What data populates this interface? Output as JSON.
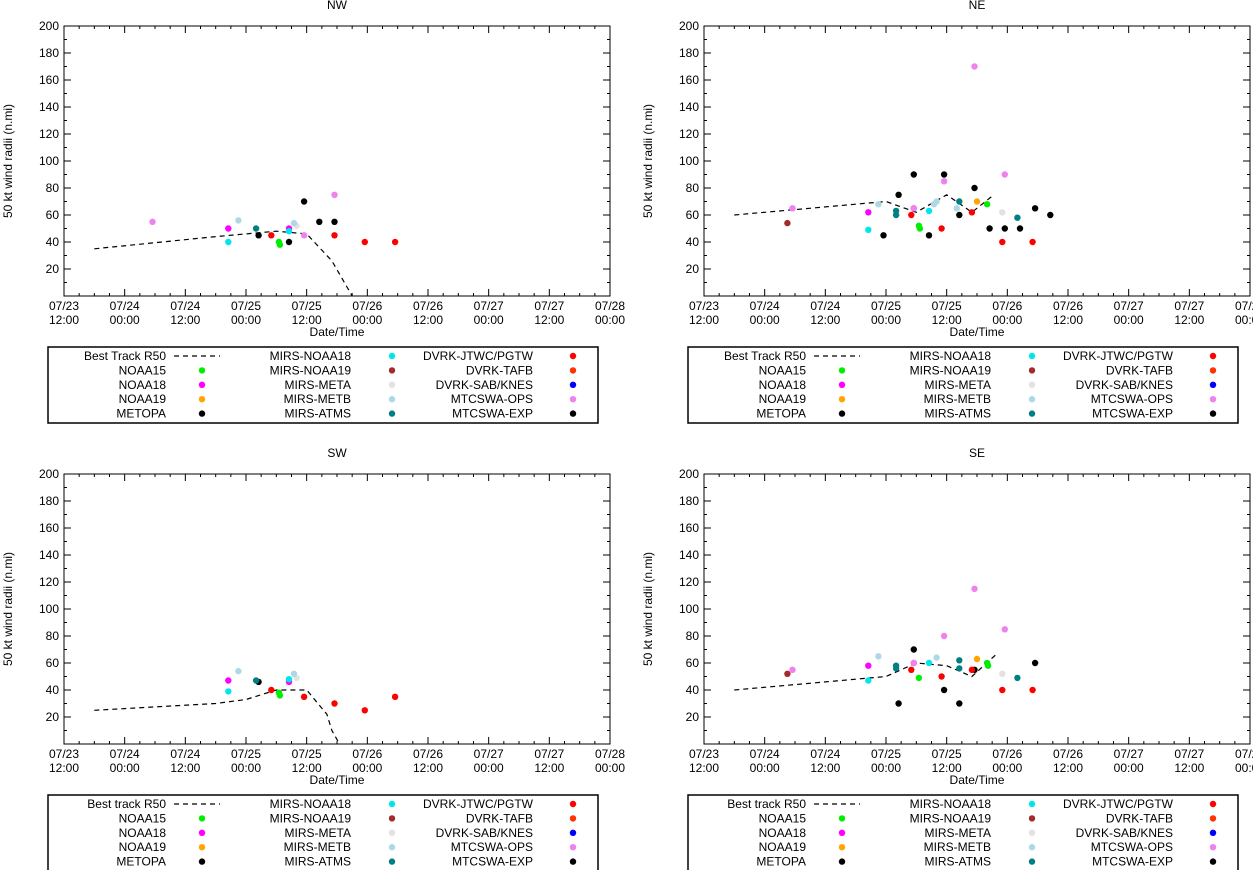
{
  "y_axis_label": "50 kt wind radii (n.mi)",
  "x_axis_label": "Date/Time",
  "x_tick_labels": [
    [
      "07/23",
      "12:00"
    ],
    [
      "07/24",
      "00:00"
    ],
    [
      "07/24",
      "12:00"
    ],
    [
      "07/25",
      "00:00"
    ],
    [
      "07/25",
      "12:00"
    ],
    [
      "07/26",
      "00:00"
    ],
    [
      "07/26",
      "12:00"
    ],
    [
      "07/27",
      "00:00"
    ],
    [
      "07/27",
      "12:00"
    ],
    [
      "07/28",
      "00:00"
    ]
  ],
  "colors": {
    "NOAA15": "#00ee00",
    "NOAA18": "#ff00ff",
    "NOAA19": "#ffa500",
    "METOPA": "#000000",
    "MIRS-NOAA18": "#00e5ee",
    "MIRS-NOAA19": "#a52a2a",
    "MIRS-META": "#e6e0e0",
    "MIRS-METB": "#add8e6",
    "MIRS-ATMS": "#008080",
    "DVRK-JTWC/PGTW": "#ff0000",
    "DVRK-TAFB": "#ff3300",
    "DVRK-SAB/KNES": "#0000ff",
    "MTCSWA-OPS": "#ee82ee",
    "MTCSWA-EXP": "#000000"
  },
  "chart_data": [
    {
      "type": "scatter",
      "title": "NW",
      "xlabel": "Date/Time",
      "ylabel": "50 kt wind radii (n.mi)",
      "x_unit": "hours since 07/23 12:00",
      "xlim": [
        0,
        108
      ],
      "ylim": [
        0,
        200
      ],
      "yticks": [
        20,
        40,
        60,
        80,
        100,
        120,
        140,
        160,
        180,
        200
      ],
      "legend": [
        "Best Track R50",
        "NOAA15",
        "NOAA18",
        "NOAA19",
        "METOPA",
        "MIRS-NOAA18",
        "MIRS-NOAA19",
        "MIRS-META",
        "MIRS-METB",
        "MIRS-ATMS",
        "DVRK-JTWC/PGTW",
        "DVRK-TAFB",
        "DVRK-SAB/KNES",
        "MTCSWA-OPS",
        "MTCSWA-EXP"
      ],
      "best_track": [
        [
          6,
          35
        ],
        [
          30,
          44
        ],
        [
          42,
          48
        ],
        [
          48,
          46
        ],
        [
          53,
          26
        ],
        [
          57,
          0
        ]
      ],
      "series": [
        {
          "name": "NOAA15",
          "points": [
            [
              42.5,
              40
            ],
            [
              42.7,
              38
            ]
          ]
        },
        {
          "name": "NOAA18",
          "points": [
            [
              32.5,
              50
            ],
            [
              44.5,
              50
            ]
          ]
        },
        {
          "name": "METOPA",
          "points": [
            [
              38.5,
              45
            ],
            [
              44.5,
              40
            ],
            [
              47.5,
              70
            ],
            [
              50.5,
              55
            ],
            [
              53.5,
              55
            ]
          ]
        },
        {
          "name": "MIRS-NOAA18",
          "points": [
            [
              32.5,
              40
            ],
            [
              44.5,
              48
            ]
          ]
        },
        {
          "name": "MIRS-META",
          "points": [
            [
              46,
              52
            ]
          ]
        },
        {
          "name": "MIRS-METB",
          "points": [
            [
              34.5,
              56
            ],
            [
              45.5,
              54
            ]
          ]
        },
        {
          "name": "MIRS-ATMS",
          "points": [
            [
              38,
              50
            ]
          ]
        },
        {
          "name": "DVRK-JTWC/PGTW",
          "points": [
            [
              41,
              45
            ],
            [
              53.5,
              45
            ],
            [
              59.5,
              40
            ],
            [
              65.5,
              40
            ]
          ]
        },
        {
          "name": "MTCSWA-OPS",
          "points": [
            [
              17.5,
              55
            ],
            [
              47.5,
              45
            ],
            [
              53.5,
              75
            ]
          ]
        }
      ]
    },
    {
      "type": "scatter",
      "title": "NE",
      "xlabel": "Date/Time",
      "ylabel": "50 kt wind radii (n.mi)",
      "x_unit": "hours since 07/23 12:00",
      "xlim": [
        0,
        108
      ],
      "ylim": [
        0,
        200
      ],
      "yticks": [
        20,
        40,
        60,
        80,
        100,
        120,
        140,
        160,
        180,
        200
      ],
      "legend": [
        "Best Track R50",
        "NOAA15",
        "NOAA18",
        "NOAA19",
        "METOPA",
        "MIRS-NOAA18",
        "MIRS-NOAA19",
        "MIRS-META",
        "MIRS-METB",
        "MIRS-ATMS",
        "DVRK-JTWC/PGTW",
        "DVRK-TAFB",
        "DVRK-SAB/KNES",
        "MTCSWA-OPS",
        "MTCSWA-EXP"
      ],
      "best_track": [
        [
          6,
          60
        ],
        [
          36,
          70
        ],
        [
          42,
          62
        ],
        [
          48,
          75
        ],
        [
          53,
          62
        ],
        [
          57,
          74
        ]
      ],
      "series": [
        {
          "name": "NOAA15",
          "points": [
            [
              42.5,
              52
            ],
            [
              42.7,
              50
            ],
            [
              56,
              68
            ]
          ]
        },
        {
          "name": "NOAA18",
          "points": [
            [
              32.5,
              62
            ],
            [
              41.5,
              65
            ]
          ]
        },
        {
          "name": "NOAA19",
          "points": [
            [
              54,
              70
            ]
          ]
        },
        {
          "name": "METOPA",
          "points": [
            [
              38.5,
              75
            ],
            [
              41.5,
              90
            ],
            [
              44.5,
              45
            ],
            [
              47.5,
              90
            ],
            [
              50.5,
              60
            ],
            [
              53.5,
              80
            ],
            [
              56.5,
              50
            ],
            [
              59.5,
              50
            ],
            [
              62.5,
              50
            ],
            [
              65.5,
              65
            ],
            [
              68.5,
              60
            ],
            [
              35.5,
              45
            ]
          ]
        },
        {
          "name": "MIRS-NOAA18",
          "points": [
            [
              32.5,
              49
            ],
            [
              44.5,
              63
            ]
          ]
        },
        {
          "name": "MIRS-NOAA19",
          "points": [
            [
              16.5,
              54
            ]
          ]
        },
        {
          "name": "MIRS-META",
          "points": [
            [
              59,
              62
            ]
          ]
        },
        {
          "name": "MIRS-METB",
          "points": [
            [
              34.5,
              68
            ],
            [
              45.5,
              68
            ],
            [
              46,
              70
            ],
            [
              50,
              65
            ]
          ]
        },
        {
          "name": "MIRS-ATMS",
          "points": [
            [
              38,
              60
            ],
            [
              38,
              63
            ],
            [
              50.5,
              70
            ],
            [
              62,
              58
            ]
          ]
        },
        {
          "name": "DVRK-JTWC/PGTW",
          "points": [
            [
              41,
              60
            ],
            [
              47,
              50
            ],
            [
              53,
              62
            ],
            [
              59,
              40
            ],
            [
              65,
              40
            ]
          ]
        },
        {
          "name": "MTCSWA-OPS",
          "points": [
            [
              17.5,
              65
            ],
            [
              41.5,
              65
            ],
            [
              47.5,
              85
            ],
            [
              53.5,
              170
            ],
            [
              59.5,
              90
            ]
          ]
        }
      ]
    },
    {
      "type": "scatter",
      "title": "SW",
      "xlabel": "Date/Time",
      "ylabel": "50 kt wind radii (n.mi)",
      "x_unit": "hours since 07/23 12:00",
      "xlim": [
        0,
        108
      ],
      "ylim": [
        0,
        200
      ],
      "yticks": [
        20,
        40,
        60,
        80,
        100,
        120,
        140,
        160,
        180,
        200
      ],
      "legend": [
        "Best track R50",
        "NOAA15",
        "NOAA18",
        "NOAA19",
        "METOPA",
        "MIRS-NOAA18",
        "MIRS-NOAA19",
        "MIRS-META",
        "MIRS-METB",
        "MIRS-ATMS",
        "DVRK-JTWC/PGTW",
        "DVRK-TAFB",
        "DVRK-SAB/KNES",
        "MTCSWA-OPS",
        "MTCSWA-EXP"
      ],
      "best_track": [
        [
          6,
          25
        ],
        [
          30,
          30
        ],
        [
          36,
          33
        ],
        [
          42,
          40
        ],
        [
          48,
          40
        ],
        [
          52,
          22
        ],
        [
          53,
          10
        ],
        [
          54.5,
          0
        ]
      ],
      "series": [
        {
          "name": "NOAA15",
          "points": [
            [
              42.5,
              38
            ],
            [
              42.7,
              36
            ]
          ]
        },
        {
          "name": "NOAA18",
          "points": [
            [
              32.5,
              47
            ],
            [
              44.5,
              46
            ]
          ]
        },
        {
          "name": "METOPA",
          "points": [
            [
              38.5,
              46
            ]
          ]
        },
        {
          "name": "MIRS-NOAA18",
          "points": [
            [
              32.5,
              39
            ],
            [
              44.5,
              48
            ]
          ]
        },
        {
          "name": "MIRS-META",
          "points": [
            [
              46,
              49
            ]
          ]
        },
        {
          "name": "MIRS-METB",
          "points": [
            [
              34.5,
              54
            ],
            [
              45.5,
              52
            ]
          ]
        },
        {
          "name": "MIRS-ATMS",
          "points": [
            [
              38,
              47
            ]
          ]
        },
        {
          "name": "DVRK-JTWC/PGTW",
          "points": [
            [
              41,
              40
            ],
            [
              47.5,
              35
            ],
            [
              53.5,
              30
            ],
            [
              59.5,
              25
            ],
            [
              65.5,
              35
            ]
          ]
        }
      ]
    },
    {
      "type": "scatter",
      "title": "SE",
      "xlabel": "Date/Time",
      "ylabel": "50 kt wind radii (n.mi)",
      "x_unit": "hours since 07/23 12:00",
      "xlim": [
        0,
        108
      ],
      "ylim": [
        0,
        200
      ],
      "yticks": [
        20,
        40,
        60,
        80,
        100,
        120,
        140,
        160,
        180,
        200
      ],
      "legend": [
        "Best track R50",
        "NOAA15",
        "NOAA18",
        "NOAA19",
        "METOPA",
        "MIRS-NOAA18",
        "MIRS-NOAA19",
        "MIRS-META",
        "MIRS-METB",
        "MIRS-ATMS",
        "DVRK-JTWC/PGTW",
        "DVRK-TAFB",
        "DVRK-SAB/KNES",
        "MTCSWA-OPS",
        "MTCSWA-EXP"
      ],
      "best_track": [
        [
          6,
          40
        ],
        [
          36,
          50
        ],
        [
          42,
          60
        ],
        [
          48,
          58
        ],
        [
          53,
          50
        ],
        [
          58,
          67
        ]
      ],
      "series": [
        {
          "name": "NOAA15",
          "points": [
            [
              42.5,
              49
            ],
            [
              56,
              60
            ],
            [
              56.2,
              58
            ]
          ]
        },
        {
          "name": "NOAA18",
          "points": [
            [
              32.5,
              58
            ],
            [
              41.5,
              60
            ]
          ]
        },
        {
          "name": "NOAA19",
          "points": [
            [
              54,
              63
            ]
          ]
        },
        {
          "name": "METOPA",
          "points": [
            [
              38.5,
              30
            ],
            [
              41.5,
              70
            ],
            [
              47.5,
              40
            ],
            [
              50.5,
              30
            ],
            [
              53.5,
              55
            ],
            [
              65.5,
              60
            ]
          ]
        },
        {
          "name": "MIRS-NOAA18",
          "points": [
            [
              32.5,
              47
            ],
            [
              44.5,
              60
            ]
          ]
        },
        {
          "name": "MIRS-NOAA19",
          "points": [
            [
              16.5,
              52
            ]
          ]
        },
        {
          "name": "MIRS-META",
          "points": [
            [
              59,
              52
            ]
          ]
        },
        {
          "name": "MIRS-METB",
          "points": [
            [
              34.5,
              65
            ],
            [
              46,
              64
            ]
          ]
        },
        {
          "name": "MIRS-ATMS",
          "points": [
            [
              38,
              58
            ],
            [
              38,
              56
            ],
            [
              50.5,
              62
            ],
            [
              50.5,
              56
            ],
            [
              62,
              49
            ]
          ]
        },
        {
          "name": "DVRK-JTWC/PGTW",
          "points": [
            [
              41,
              55
            ],
            [
              47,
              50
            ],
            [
              53,
              55
            ],
            [
              59,
              40
            ],
            [
              65,
              40
            ]
          ]
        },
        {
          "name": "MTCSWA-OPS",
          "points": [
            [
              17.5,
              55
            ],
            [
              41.5,
              60
            ],
            [
              47.5,
              80
            ],
            [
              53.5,
              115
            ],
            [
              59.5,
              85
            ]
          ]
        }
      ]
    }
  ]
}
